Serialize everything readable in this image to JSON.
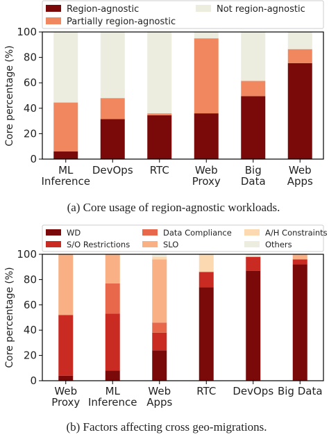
{
  "chart_data": [
    {
      "id": "a",
      "type": "bar",
      "stacked": true,
      "caption": "(a) Core usage of region-agnostic workloads.",
      "ylabel": "Core percentage (%)",
      "ylim": [
        0,
        100
      ],
      "yticks": [
        0,
        20,
        40,
        60,
        80,
        100
      ],
      "categories": [
        [
          "ML",
          "Inference"
        ],
        [
          "DevOps"
        ],
        [
          "RTC"
        ],
        [
          "Web",
          "Proxy"
        ],
        [
          "Big",
          "Data"
        ],
        [
          "Web",
          "Apps"
        ]
      ],
      "legend_position": "top",
      "series": [
        {
          "name": "Region-agnostic",
          "color": "#7a0a0a",
          "values": [
            6,
            31.5,
            34.5,
            36,
            49.5,
            75.5
          ]
        },
        {
          "name": "Partially region-agnostic",
          "color": "#f0875f",
          "values": [
            38.5,
            16.5,
            1.5,
            59,
            12,
            11
          ]
        },
        {
          "name": "Not region-agnostic",
          "color": "#ececdf",
          "values": [
            55.5,
            52,
            64,
            5,
            38.5,
            13.5
          ]
        }
      ]
    },
    {
      "id": "b",
      "type": "bar",
      "stacked": true,
      "caption": "(b) Factors affecting cross geo-migrations.",
      "ylabel": "Core percentage (%)",
      "ylim": [
        0,
        100
      ],
      "yticks": [
        0,
        20,
        40,
        60,
        80,
        100
      ],
      "categories": [
        [
          "Web",
          "Proxy"
        ],
        [
          "ML",
          "Inference"
        ],
        [
          "Web",
          "Apps"
        ],
        [
          "RTC"
        ],
        [
          "DevOps"
        ],
        [
          "Big Data"
        ]
      ],
      "legend_position": "top",
      "series": [
        {
          "name": "WD",
          "color": "#7a0a0a",
          "values": [
            4,
            8,
            24,
            74,
            87,
            92
          ]
        },
        {
          "name": "S/O Restrictions",
          "color": "#c92a22",
          "values": [
            48,
            45,
            14,
            12,
            11,
            4
          ]
        },
        {
          "name": "Data Compliance",
          "color": "#e8684c",
          "values": [
            0,
            24,
            8,
            0,
            0,
            0
          ]
        },
        {
          "name": "SLO",
          "color": "#f8b084",
          "values": [
            48,
            23,
            50,
            0,
            0,
            4
          ]
        },
        {
          "name": "A/H Constraints",
          "color": "#fcd9b1",
          "values": [
            0,
            0,
            2,
            14,
            0,
            0
          ]
        },
        {
          "name": "Others",
          "color": "#ececdf",
          "values": [
            0,
            0,
            2,
            0,
            2,
            0
          ]
        }
      ]
    }
  ]
}
